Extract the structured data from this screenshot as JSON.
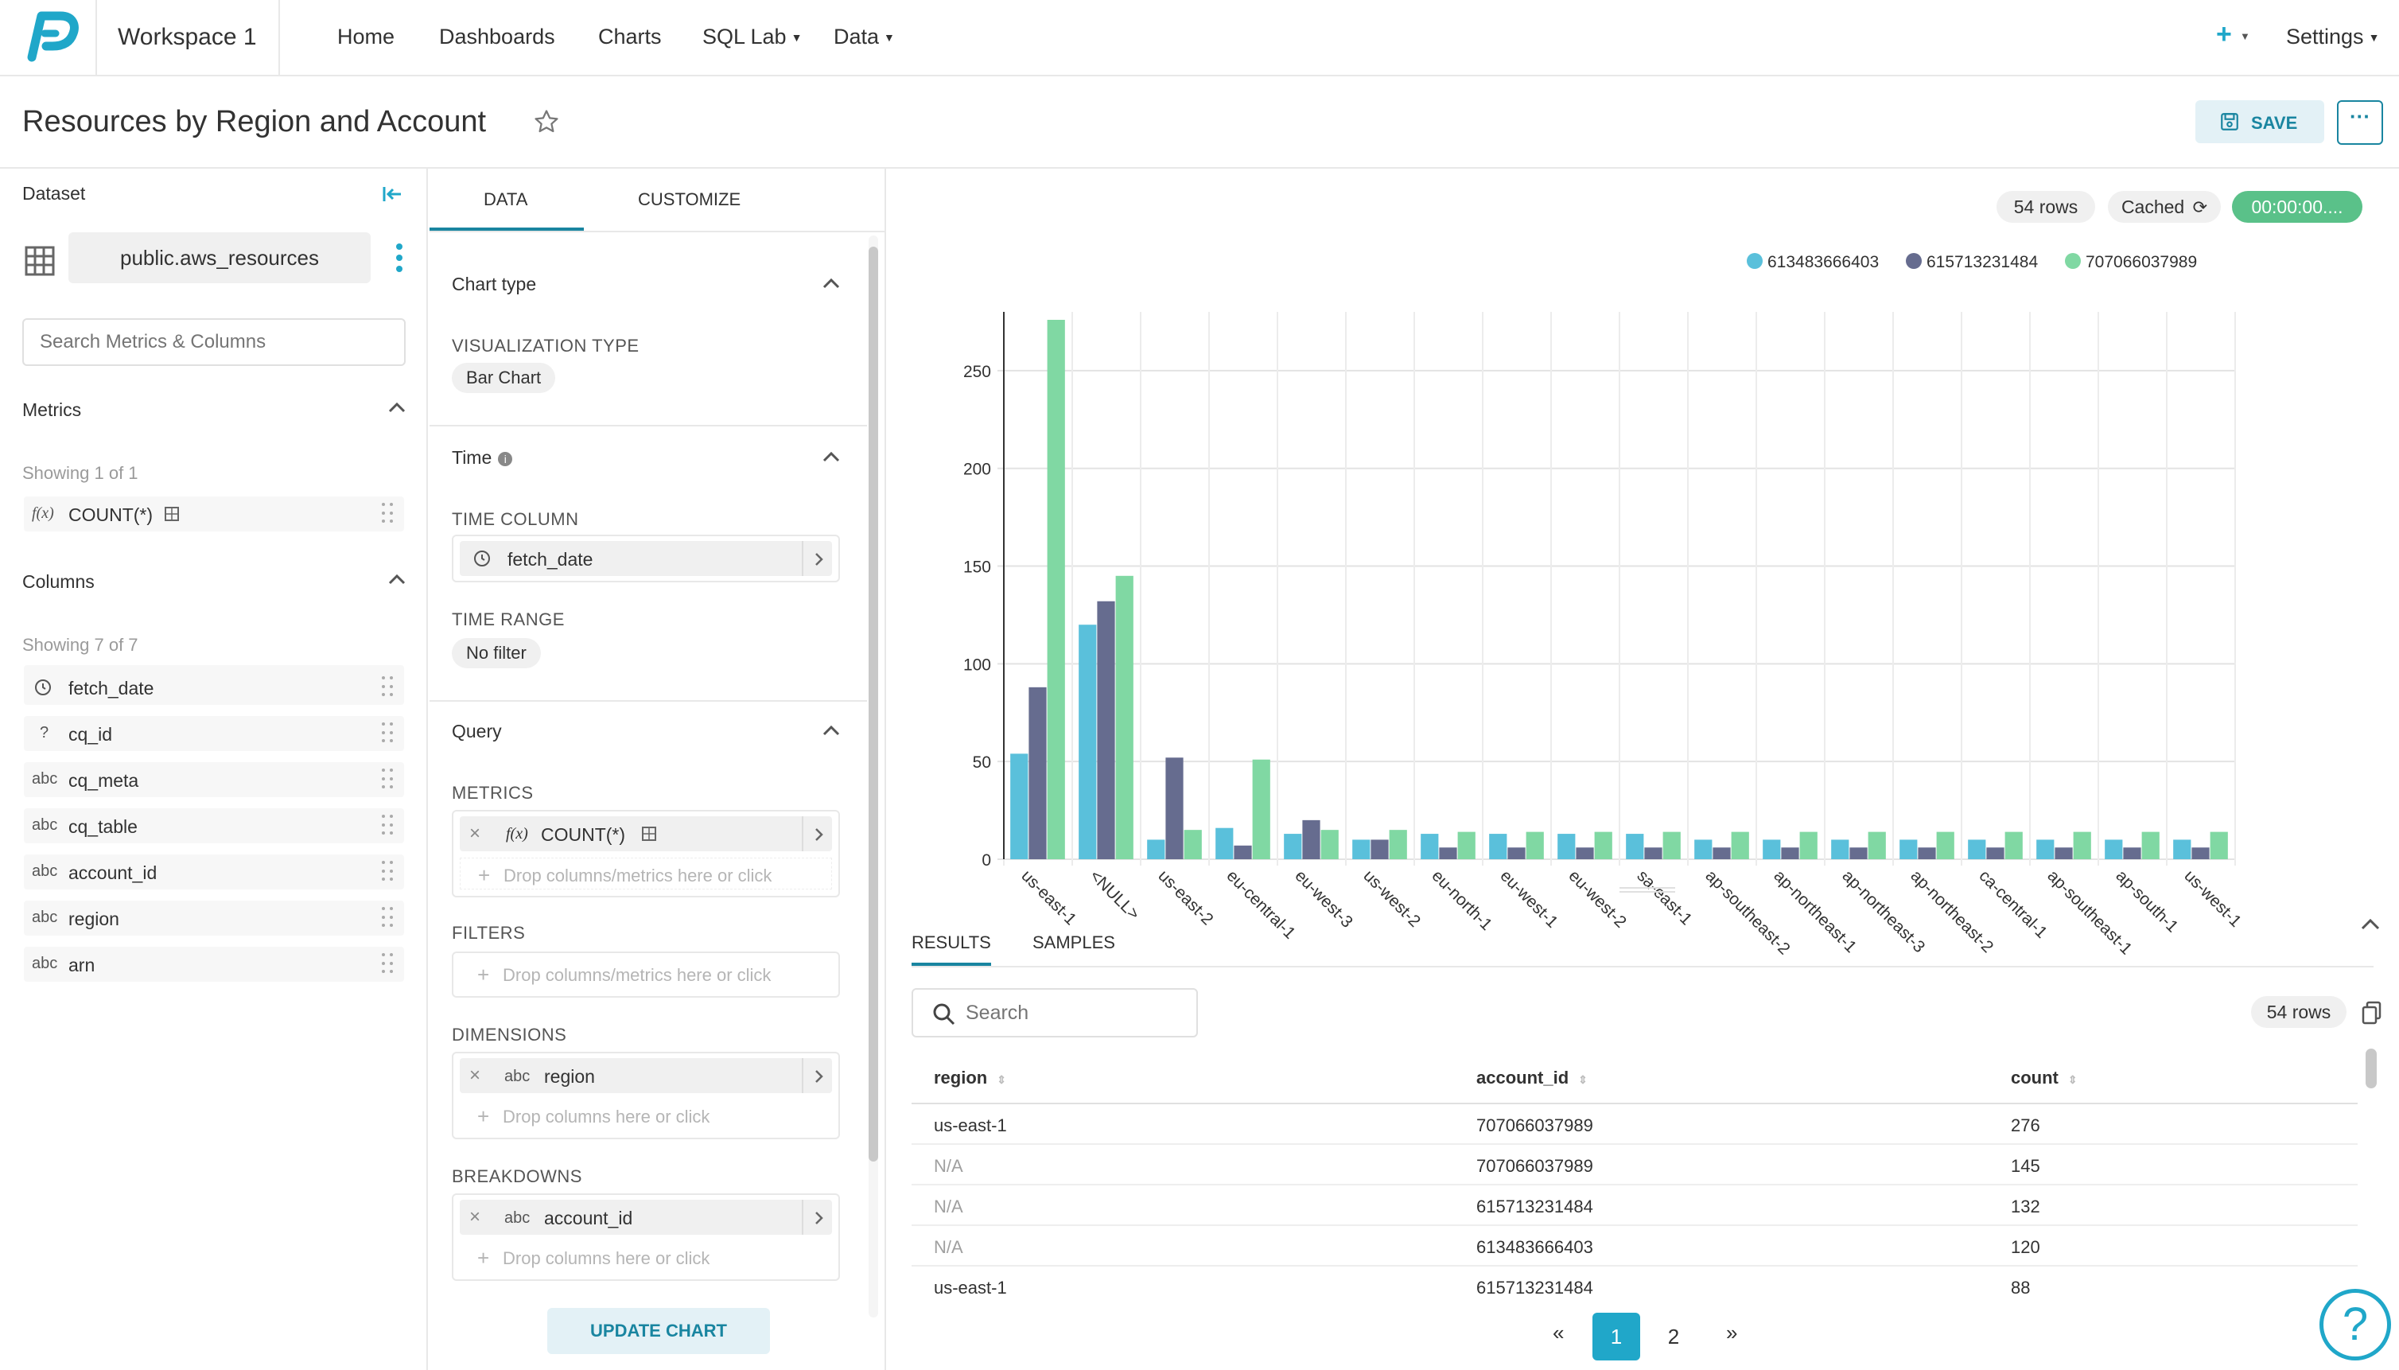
{
  "topnav": {
    "workspace": "Workspace 1",
    "items": [
      "Home",
      "Dashboards",
      "Charts",
      "SQL Lab",
      "Data"
    ],
    "settings": "Settings"
  },
  "header": {
    "title": "Resources by Region and Account",
    "save_label": "SAVE"
  },
  "dataset": {
    "label": "Dataset",
    "name": "public.aws_resources",
    "search_placeholder": "Search Metrics & Columns",
    "metrics_title": "Metrics",
    "metrics_showing": "Showing 1 of 1",
    "metrics": [
      {
        "type": "f(x)",
        "name": "COUNT(*)"
      }
    ],
    "columns_title": "Columns",
    "columns_showing": "Showing 7 of 7",
    "columns": [
      {
        "type": "clock",
        "name": "fetch_date"
      },
      {
        "type": "?",
        "name": "cq_id"
      },
      {
        "type": "abc",
        "name": "cq_meta"
      },
      {
        "type": "abc",
        "name": "cq_table"
      },
      {
        "type": "abc",
        "name": "account_id"
      },
      {
        "type": "abc",
        "name": "region"
      },
      {
        "type": "abc",
        "name": "arn"
      }
    ]
  },
  "controls": {
    "tab_data": "DATA",
    "tab_customize": "CUSTOMIZE",
    "chart_type_title": "Chart type",
    "viz_type_label": "VISUALIZATION TYPE",
    "viz_type_value": "Bar Chart",
    "time_title": "Time",
    "time_column_label": "TIME COLUMN",
    "time_column_value": "fetch_date",
    "time_range_label": "TIME RANGE",
    "time_range_value": "No filter",
    "query_title": "Query",
    "metrics_label": "METRICS",
    "metric_value": "COUNT(*)",
    "metric_prefix": "f(x)",
    "drop_metrics": "Drop columns/metrics here or click",
    "filters_label": "FILTERS",
    "drop_filters": "Drop columns/metrics here or click",
    "dimensions_label": "DIMENSIONS",
    "dimension_value": "region",
    "drop_columns": "Drop columns here or click",
    "breakdowns_label": "BREAKDOWNS",
    "breakdown_value": "account_id",
    "drop_breakdowns": "Drop columns here or click",
    "abc": "abc",
    "update_label": "UPDATE CHART"
  },
  "status": {
    "rows": "54 rows",
    "cached": "Cached",
    "timer": "00:00:00...."
  },
  "colors": {
    "accent": "#20a7c9",
    "s1": "#5ac0db",
    "s2": "#666c8f",
    "s3": "#80d8a3",
    "timer": "#5ac189"
  },
  "chart_data": {
    "type": "bar",
    "categories": [
      "us-east-1",
      "<NULL>",
      "us-east-2",
      "eu-central-1",
      "eu-west-3",
      "us-west-2",
      "eu-north-1",
      "eu-west-1",
      "eu-west-2",
      "sa-east-1",
      "ap-southeast-2",
      "ap-northeast-1",
      "ap-northeast-3",
      "ap-northeast-2",
      "ca-central-1",
      "ap-southeast-1",
      "ap-south-1",
      "us-west-1"
    ],
    "series": [
      {
        "name": "613483666403",
        "values": [
          54,
          120,
          10,
          16,
          13,
          10,
          13,
          13,
          13,
          13,
          10,
          10,
          10,
          10,
          10,
          10,
          10,
          10
        ]
      },
      {
        "name": "615713231484",
        "values": [
          88,
          132,
          52,
          7,
          20,
          10,
          6,
          6,
          6,
          6,
          6,
          6,
          6,
          6,
          6,
          6,
          6,
          6
        ]
      },
      {
        "name": "707066037989",
        "values": [
          276,
          145,
          15,
          51,
          15,
          15,
          14,
          14,
          14,
          14,
          14,
          14,
          14,
          14,
          14,
          14,
          14,
          14
        ]
      }
    ],
    "yticks": [
      0,
      50,
      100,
      150,
      200,
      250
    ],
    "ylim": [
      0,
      276
    ]
  },
  "results": {
    "tab_results": "RESULTS",
    "tab_samples": "SAMPLES",
    "search_placeholder": "Search",
    "rows_badge": "54 rows",
    "headers": [
      "region",
      "account_id",
      "count"
    ],
    "rows": [
      [
        "us-east-1",
        "707066037989",
        "276"
      ],
      [
        "N/A",
        "707066037989",
        "145"
      ],
      [
        "N/A",
        "615713231484",
        "132"
      ],
      [
        "N/A",
        "613483666403",
        "120"
      ],
      [
        "us-east-1",
        "615713231484",
        "88"
      ]
    ],
    "pagination": {
      "prev": "«",
      "pages": [
        "1",
        "2"
      ],
      "next": "»"
    }
  }
}
